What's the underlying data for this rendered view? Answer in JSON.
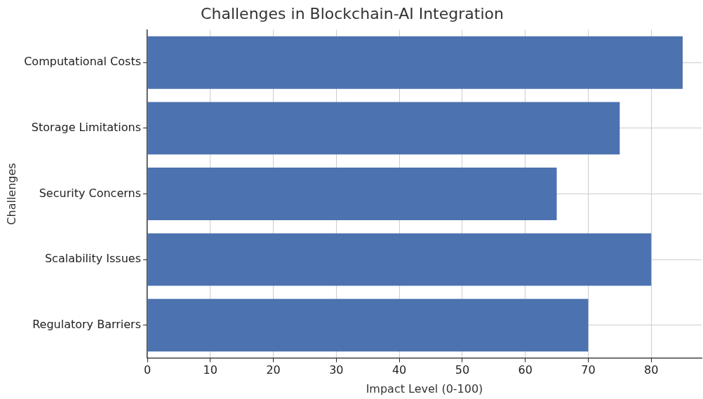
{
  "chart_data": {
    "type": "bar",
    "orientation": "horizontal",
    "title": "Challenges in Blockchain-AI Integration",
    "xlabel": "Impact Level (0-100)",
    "ylabel": "Challenges",
    "categories": [
      "Computational Costs",
      "Storage Limitations",
      "Security Concerns",
      "Scalability Issues",
      "Regulatory Barriers"
    ],
    "values": [
      85,
      75,
      65,
      80,
      70
    ],
    "color": "#4c72b0",
    "xlim": [
      0,
      88
    ],
    "xticks": [
      0,
      10,
      20,
      30,
      40,
      50,
      60,
      70,
      80
    ],
    "grid": true,
    "legend": false
  }
}
